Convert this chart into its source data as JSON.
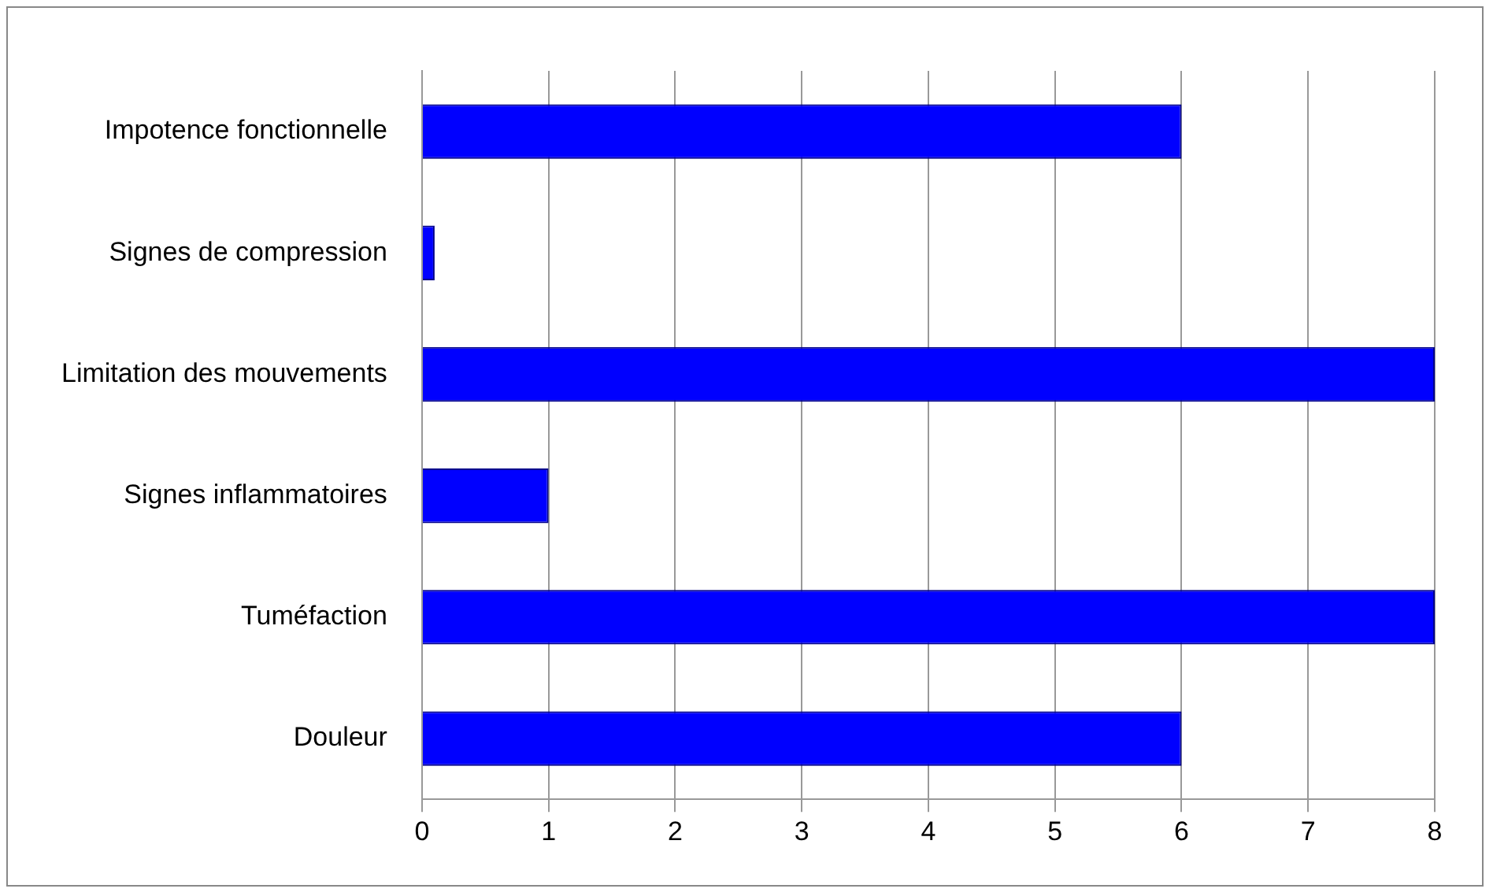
{
  "chart_data": {
    "type": "bar",
    "orientation": "horizontal",
    "categories": [
      "Impotence fonctionnelle",
      "Signes de compression",
      "Limitation des mouvements",
      "Signes inflammatoires",
      "Tuméfaction",
      "Douleur"
    ],
    "values": [
      6,
      0.1,
      8,
      1,
      8,
      6
    ],
    "color": "#0000ff",
    "xlim": [
      0,
      8
    ],
    "xticks": [
      0,
      1,
      2,
      3,
      4,
      5,
      6,
      7,
      8
    ],
    "grid": "x",
    "legend": false
  }
}
